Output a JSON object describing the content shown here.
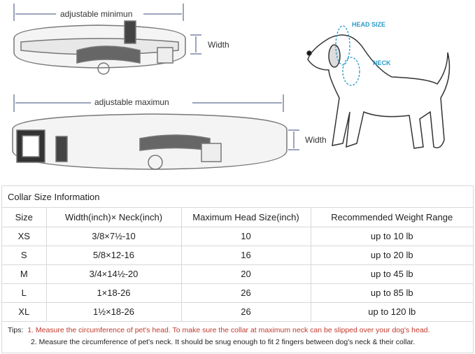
{
  "diagram": {
    "min_label": "adjustable minimun",
    "max_label": "adjustable maximun",
    "width_label_1": "Width",
    "width_label_2": "Width",
    "head_size_label": "HEAD SIZE",
    "neck_label": "NECK"
  },
  "table": {
    "title": "Collar Size Information",
    "headers": [
      "Size",
      "Width(inch)× Neck(inch)",
      "Maximum Head Size(inch)",
      "Recommended Weight Range"
    ],
    "rows": [
      [
        "XS",
        "3/8×7½-10",
        "10",
        "up to 10 lb"
      ],
      [
        "S",
        "5/8×12-16",
        "16",
        "up to 20 lb"
      ],
      [
        "M",
        "3/4×14½-20",
        "20",
        "up to 45 lb"
      ],
      [
        "L",
        "1×18-26",
        "26",
        "up to 85 lb"
      ],
      [
        "XL",
        "1½×18-26",
        "26",
        "up to 120 lb"
      ]
    ]
  },
  "tips": {
    "prefix": "Tips:",
    "tip1": "1. Measure the circumference of pet's head.  To make sure the collar at maximum neck can be slipped over your dog's head.",
    "tip2": "2. Measure the circumference of pet's neck. It should be snug enough to fit 2 fingers between dog's neck & their collar."
  },
  "colors": {
    "accent": "#2a9ac8",
    "tip_red": "#c0392b",
    "arrow": "#3a4a7a"
  }
}
